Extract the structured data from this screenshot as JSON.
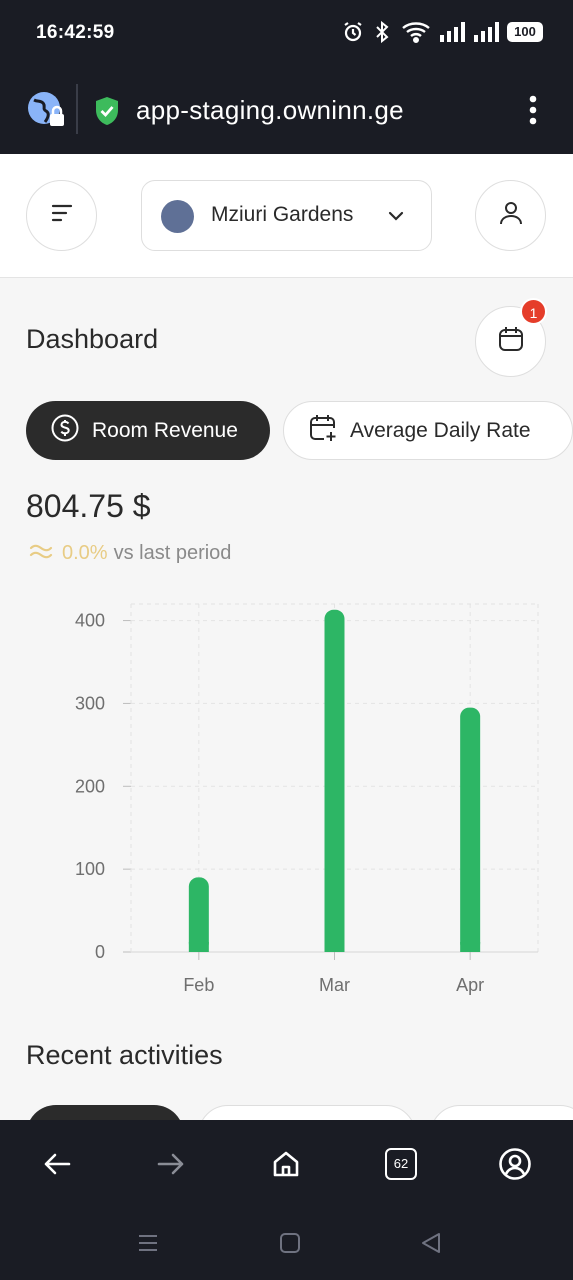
{
  "status_bar": {
    "time": "16:42:59",
    "battery": "100",
    "icons": [
      "alarm-icon",
      "bluetooth-icon",
      "wifi-icon",
      "signal-icon",
      "signal-icon",
      "battery-icon"
    ]
  },
  "browser": {
    "url": "app-staging.owninn.ge",
    "tab_count": "62",
    "secure_color": "#3dbb5c"
  },
  "header": {
    "hotel_name": "Mziuri Gardens",
    "hotel_color": "#5f7096"
  },
  "dashboard": {
    "title": "Dashboard",
    "notification_count": "1",
    "tabs": [
      {
        "label": "Room Revenue",
        "active": true,
        "icon": "dollar-circle-icon"
      },
      {
        "label": "Average Daily Rate",
        "active": false,
        "icon": "calendar-plus-icon"
      }
    ],
    "value": "804.75 $",
    "trend_percent": "0.0%",
    "trend_label": "vs last period",
    "trend_color": "#e8cc85"
  },
  "chart_data": {
    "type": "bar",
    "categories": [
      "Feb",
      "Mar",
      "Apr"
    ],
    "values": [
      90,
      413,
      295
    ],
    "yticks": [
      0,
      100,
      200,
      300,
      400
    ],
    "ylim": [
      0,
      420
    ],
    "bar_color": "#2db665",
    "grid": true,
    "title": "",
    "xlabel": "",
    "ylabel": ""
  },
  "recent": {
    "title": "Recent activities"
  },
  "colors": {
    "accent_dark": "#2b2b2b",
    "bar_green": "#2db665",
    "badge_red": "#e53d2a"
  }
}
